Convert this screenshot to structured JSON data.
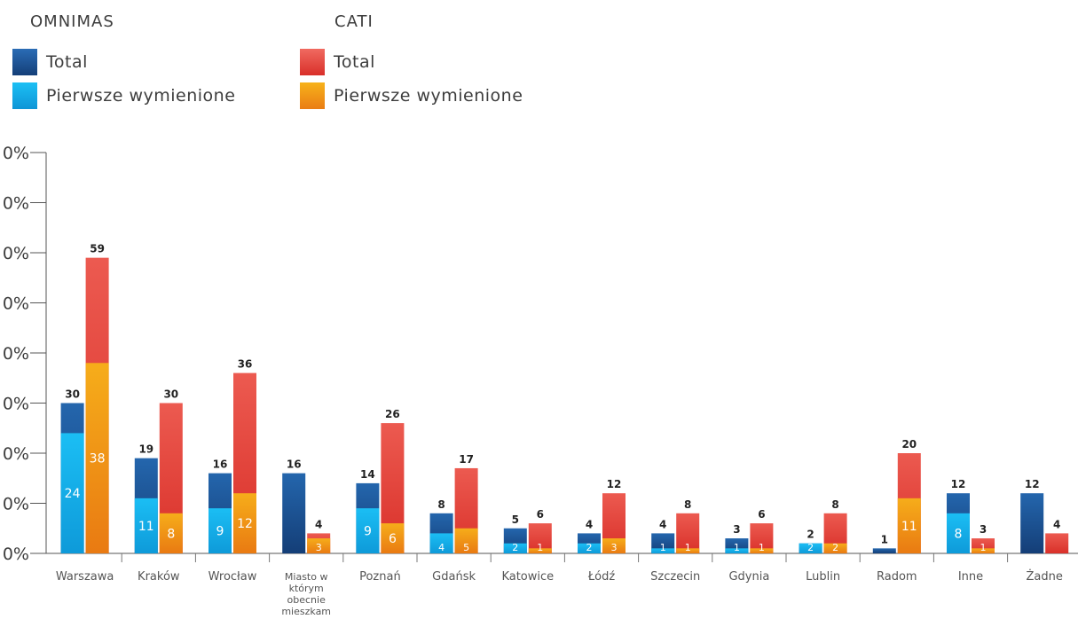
{
  "legend": {
    "groups": [
      {
        "title": "OMNIMAS",
        "items": [
          {
            "label": "Total",
            "color": "#1a4f8f"
          },
          {
            "label": "Pierwsze wymienione",
            "color": "#14aeea"
          }
        ]
      },
      {
        "title": "CATI",
        "items": [
          {
            "label": "Total",
            "color": "#e8403a"
          },
          {
            "label": "Pierwsze wymienione",
            "color": "#f39a12"
          }
        ]
      }
    ]
  },
  "colors": {
    "omnimas_total": "#1a4f8f",
    "omnimas_first": "#14aeea",
    "cati_total": "#e8403a",
    "cati_first": "#f39a12"
  },
  "chart_data": {
    "type": "bar",
    "stacked_overlay": true,
    "categories": [
      "Warszawa",
      "Kraków",
      "Wrocław",
      "Miasto w którym obecnie mieszkam",
      "Poznań",
      "Gdańsk",
      "Katowice",
      "Łódź",
      "Szczecin",
      "Gdynia",
      "Lublin",
      "Radom",
      "Inne",
      "Żadne"
    ],
    "y_ticks": [
      "0%",
      "0%",
      "0%",
      "0%",
      "0%",
      "0%",
      "0%",
      "0%",
      "0%"
    ],
    "ylim": [
      0,
      80
    ],
    "series": [
      {
        "name": "OMNIMAS Total",
        "values": [
          30,
          19,
          16,
          16,
          14,
          8,
          5,
          4,
          4,
          3,
          2,
          1,
          12,
          12
        ]
      },
      {
        "name": "OMNIMAS Pierwsze wymienione",
        "values": [
          24,
          11,
          9,
          null,
          9,
          4,
          2,
          2,
          1,
          1,
          2,
          null,
          8,
          null
        ]
      },
      {
        "name": "CATI Total",
        "values": [
          59,
          30,
          36,
          4,
          26,
          17,
          6,
          12,
          8,
          6,
          8,
          20,
          3,
          4
        ]
      },
      {
        "name": "CATI Pierwsze wymienione",
        "values": [
          38,
          8,
          12,
          3,
          6,
          5,
          1,
          3,
          1,
          1,
          2,
          11,
          1,
          null
        ]
      }
    ]
  }
}
